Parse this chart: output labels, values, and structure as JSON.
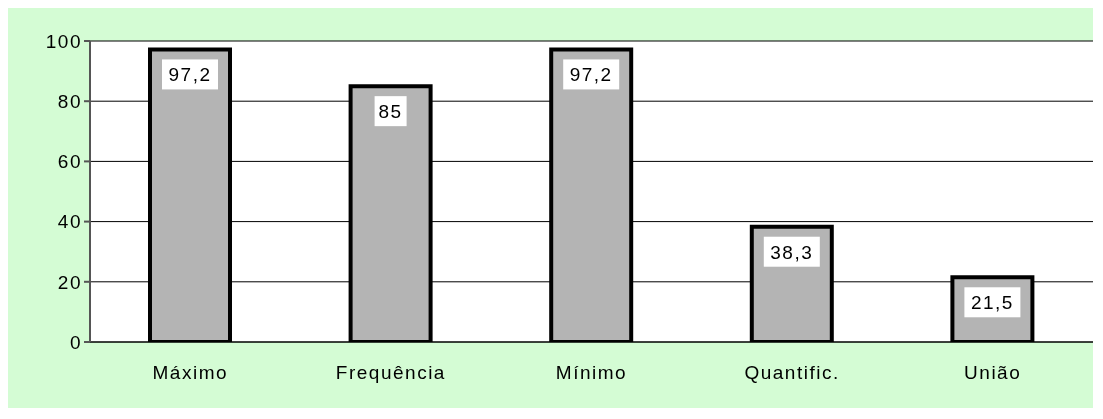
{
  "chart_data": {
    "type": "bar",
    "categories": [
      "Máximo",
      "Frequência",
      "Mínimo",
      "Quantific.",
      "União"
    ],
    "values": [
      97.2,
      85,
      97.2,
      38.3,
      21.5
    ],
    "color": "#b4b4b4",
    "value_labels": [
      "97,2",
      "85",
      "97,2",
      "38,3",
      "21,5"
    ],
    "ylim": [
      0,
      100
    ],
    "yticks": [
      0,
      20,
      40,
      60,
      80,
      100
    ],
    "grid": "y"
  }
}
